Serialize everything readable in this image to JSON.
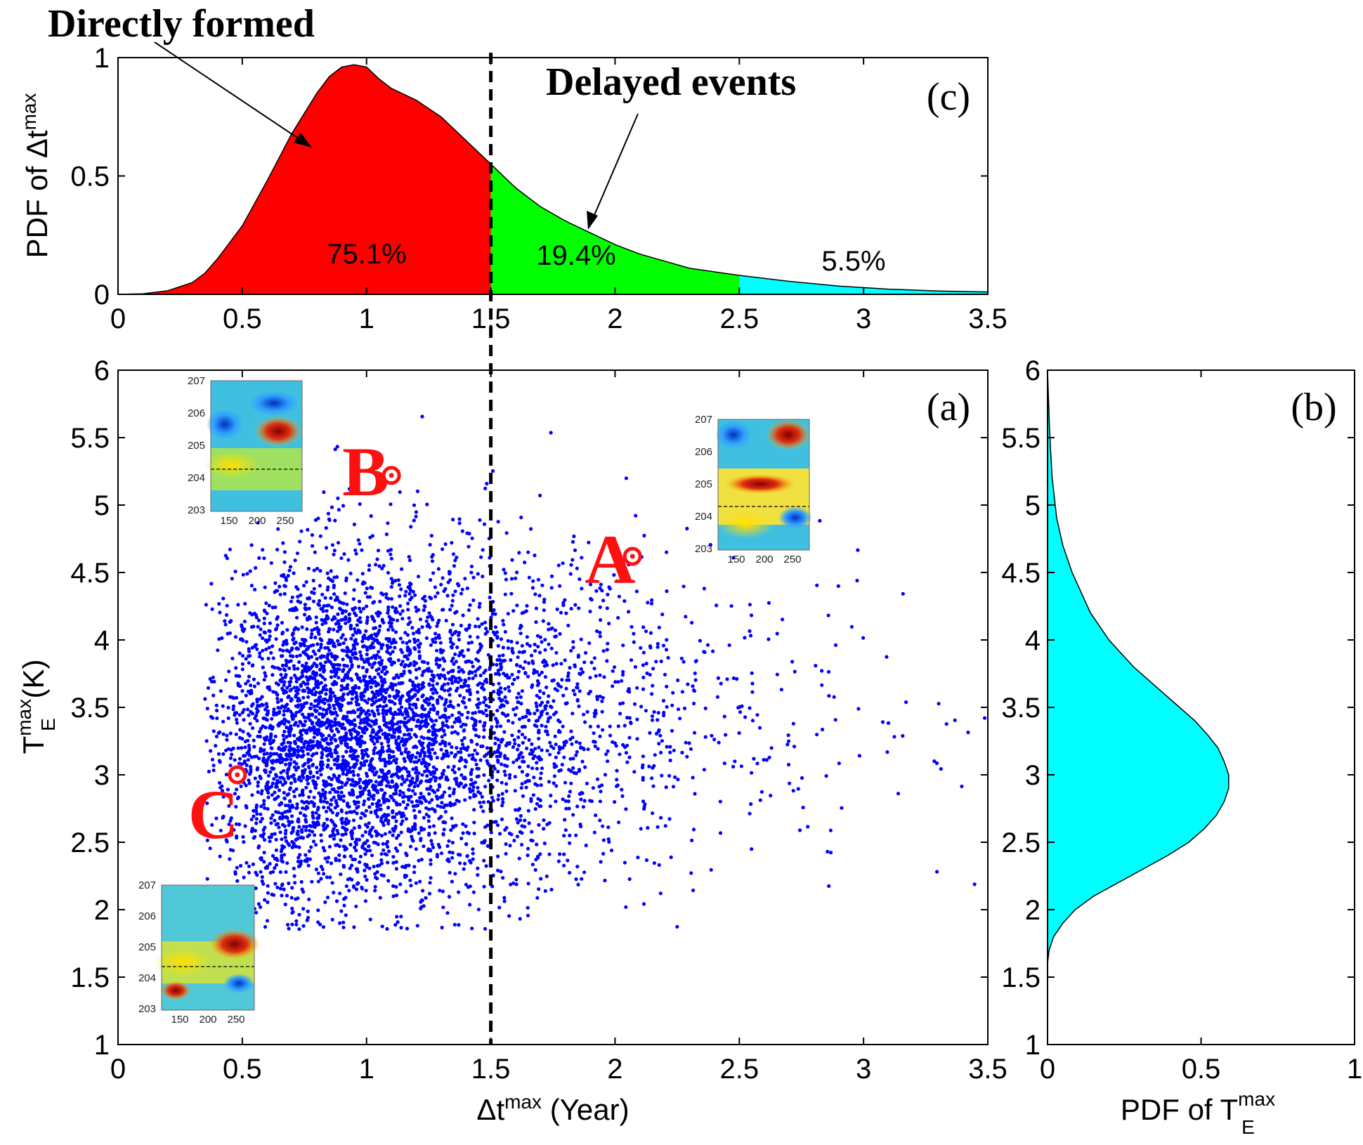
{
  "chart_data": [
    {
      "panel": "(c)",
      "type": "area",
      "ylabel_prefix": "PDF of Δt",
      "ylabel_sup": "max",
      "xlim": [
        0,
        3.5
      ],
      "ylim": [
        0,
        1
      ],
      "xticks": [
        "0",
        "0.5",
        "1",
        "1.5",
        "2",
        "2.5",
        "3",
        "3.5"
      ],
      "yticks": [
        "0",
        "0.5",
        "1"
      ],
      "x": [
        0,
        0.1,
        0.2,
        0.3,
        0.35,
        0.4,
        0.5,
        0.6,
        0.7,
        0.8,
        0.85,
        0.9,
        0.95,
        1.0,
        1.05,
        1.1,
        1.2,
        1.3,
        1.4,
        1.5,
        1.6,
        1.7,
        1.8,
        1.9,
        2.0,
        2.1,
        2.2,
        2.3,
        2.5,
        2.7,
        2.9,
        3.1,
        3.3,
        3.5
      ],
      "y": [
        0,
        0.002,
        0.015,
        0.05,
        0.09,
        0.15,
        0.29,
        0.48,
        0.68,
        0.85,
        0.92,
        0.96,
        0.97,
        0.96,
        0.91,
        0.87,
        0.82,
        0.75,
        0.65,
        0.55,
        0.45,
        0.37,
        0.31,
        0.26,
        0.21,
        0.17,
        0.14,
        0.11,
        0.08,
        0.055,
        0.035,
        0.022,
        0.014,
        0.01
      ],
      "regions": [
        {
          "from": 0,
          "to": 1.5,
          "color": "#ff0000",
          "label": "75.1%"
        },
        {
          "from": 1.5,
          "to": 2.5,
          "color": "#00ff00",
          "label": "19.4%"
        },
        {
          "from": 2.5,
          "to": 3.5,
          "color": "#00ffff",
          "label": "5.5%"
        }
      ],
      "annotations": [
        "Directly formed",
        "Delayed events"
      ]
    },
    {
      "panel": "(a)",
      "type": "scatter",
      "xlabel_prefix": "Δt",
      "xlabel_sup": "max",
      "xlabel_suffix": " (Year)",
      "ylabel_main": "T",
      "ylabel_sub": "E",
      "ylabel_sup": "max",
      "ylabel_suffix": " (K)",
      "xlim": [
        0,
        3.5
      ],
      "ylim": [
        1,
        6
      ],
      "xticks": [
        "0",
        "0.5",
        "1",
        "1.5",
        "2",
        "2.5",
        "3",
        "3.5"
      ],
      "yticks": [
        "1",
        "1.5",
        "2",
        "2.5",
        "3",
        "3.5",
        "4",
        "4.5",
        "5",
        "5.5",
        "6"
      ],
      "color": "#0000ff",
      "threshold_x": 1.5,
      "points_approx": 5000,
      "events": [
        {
          "label": "A",
          "x": 2.07,
          "y": 4.62
        },
        {
          "label": "B",
          "x": 1.1,
          "y": 5.22
        },
        {
          "label": "C",
          "x": 0.48,
          "y": 3.0
        }
      ],
      "inset_yticks": [
        "207",
        "206",
        "205",
        "204",
        "203"
      ],
      "inset_xticks": [
        "150",
        "200",
        "250"
      ]
    },
    {
      "panel": "(b)",
      "type": "area",
      "xlabel_prefix": "PDF of T",
      "xlabel_sub": "E",
      "xlabel_sup": "max",
      "xlim": [
        0,
        1
      ],
      "ylim": [
        1,
        6
      ],
      "xticks": [
        "0",
        "0.5",
        "1"
      ],
      "yticks": [
        "1",
        "1.5",
        "2",
        "2.5",
        "3",
        "3.5",
        "4",
        "4.5",
        "5",
        "5.5",
        "6"
      ],
      "color": "#00ffff",
      "t": [
        1.6,
        1.7,
        1.8,
        1.9,
        2.0,
        2.1,
        2.2,
        2.3,
        2.4,
        2.5,
        2.6,
        2.7,
        2.8,
        2.9,
        3.0,
        3.1,
        3.2,
        3.3,
        3.4,
        3.5,
        3.6,
        3.7,
        3.8,
        3.9,
        4.0,
        4.1,
        4.2,
        4.3,
        4.4,
        4.5,
        4.6,
        4.7,
        4.8,
        4.9,
        5.0,
        5.2,
        5.4,
        5.6,
        5.8,
        6.0
      ],
      "pdf": [
        0.0,
        0.005,
        0.02,
        0.05,
        0.09,
        0.15,
        0.23,
        0.31,
        0.39,
        0.46,
        0.51,
        0.55,
        0.575,
        0.59,
        0.59,
        0.575,
        0.555,
        0.52,
        0.48,
        0.43,
        0.38,
        0.33,
        0.28,
        0.24,
        0.2,
        0.17,
        0.14,
        0.12,
        0.1,
        0.08,
        0.065,
        0.05,
        0.04,
        0.03,
        0.025,
        0.015,
        0.01,
        0.006,
        0.003,
        0.0
      ]
    }
  ]
}
